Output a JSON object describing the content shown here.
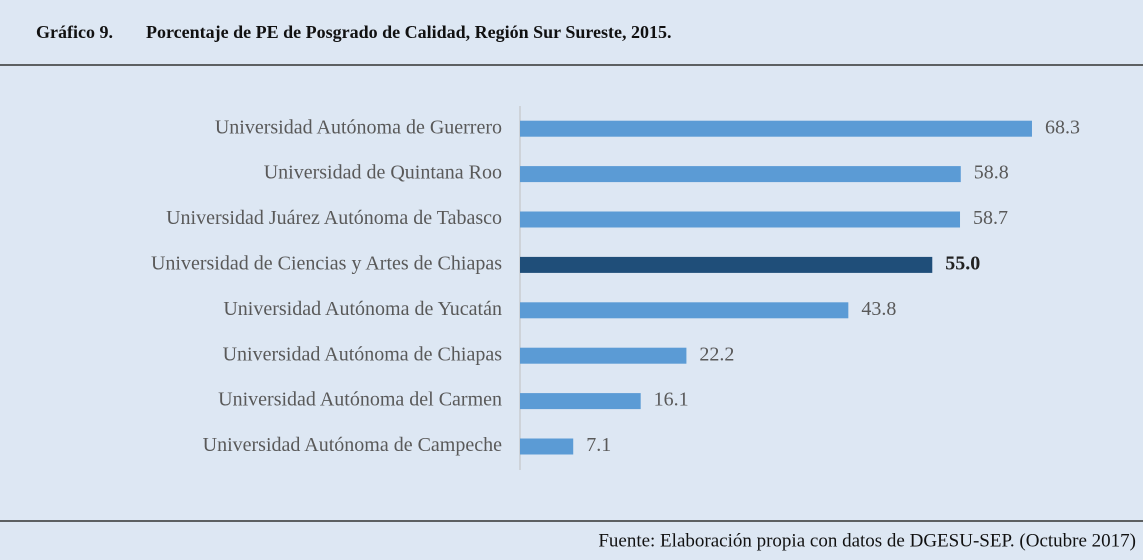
{
  "chart_data": {
    "type": "barh",
    "figure_label": "Gráfico 9.",
    "title": "Porcentaje de PE de Posgrado de Calidad, Región Sur Sureste, 2015.",
    "source": "Fuente: Elaboración propia con datos de DGESU-SEP. (Octubre 2017)",
    "categories": [
      "Universidad Autónoma de Guerrero",
      "Universidad de Quintana Roo",
      "Universidad Juárez Autónoma de Tabasco",
      "Universidad de Ciencias y Artes de Chiapas",
      "Universidad Autónoma de Yucatán",
      "Universidad Autónoma de Chiapas",
      "Universidad Autónoma del Carmen",
      "Universidad Autónoma de Campeche"
    ],
    "values": [
      68.3,
      58.8,
      58.7,
      55,
      43.8,
      22.2,
      16.1,
      7.1
    ],
    "value_labels": [
      "68.3",
      "58.8",
      "58.7",
      "55.0",
      "43.8",
      "22.2",
      "16.1",
      "7.1"
    ],
    "color": "#5b9bd5",
    "colors": [
      "#5b9bd5",
      "#5b9bd5",
      "#5b9bd5",
      "#1f4e79",
      "#5b9bd5",
      "#5b9bd5",
      "#5b9bd5",
      "#5b9bd5"
    ],
    "xlim": [
      0,
      70
    ]
  }
}
